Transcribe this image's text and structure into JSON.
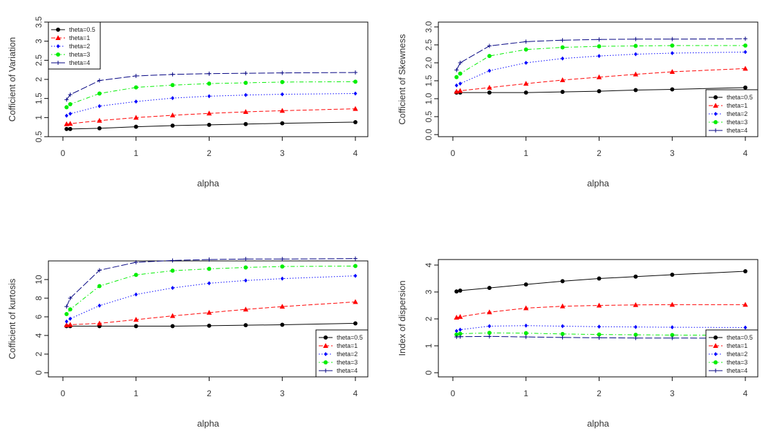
{
  "figure": {
    "x_tick_labels": [
      "0",
      "1",
      "2",
      "3",
      "4"
    ]
  },
  "chart_data": [
    {
      "type": "line",
      "xlabel": "alpha",
      "ylabel": "Cofficient of Variation",
      "xlim": [
        0,
        4
      ],
      "ylim": [
        0.5,
        3.5
      ],
      "y_ticks": [
        0.5,
        1,
        1.5,
        2,
        2.5,
        3,
        3.5
      ],
      "y_tick_labels": [
        "0.5",
        "1",
        "1.5",
        "2",
        "2.5",
        "3",
        "3.5"
      ],
      "legend_position": "top-left",
      "x": [
        0.05,
        0.1,
        0.5,
        1,
        1.5,
        2,
        2.5,
        3,
        4
      ],
      "series": [
        {
          "name": "theta=0.5",
          "color": "#000000",
          "marker": "circle",
          "dash": "solid",
          "values": [
            0.7,
            0.7,
            0.72,
            0.76,
            0.79,
            0.81,
            0.83,
            0.85,
            0.88
          ]
        },
        {
          "name": "theta=1",
          "color": "#ff0000",
          "marker": "triangle",
          "dash": "dashed",
          "values": [
            0.83,
            0.84,
            0.92,
            1.0,
            1.06,
            1.11,
            1.15,
            1.18,
            1.23
          ]
        },
        {
          "name": "theta=2",
          "color": "#0000ff",
          "marker": "diamond",
          "dash": "dotted",
          "values": [
            1.05,
            1.1,
            1.3,
            1.42,
            1.51,
            1.56,
            1.59,
            1.61,
            1.63
          ]
        },
        {
          "name": "theta=3",
          "color": "#00ee00",
          "marker": "circle",
          "dash": "dotdash",
          "values": [
            1.27,
            1.35,
            1.63,
            1.79,
            1.85,
            1.89,
            1.91,
            1.93,
            1.94
          ]
        },
        {
          "name": "theta=4",
          "color": "#000080",
          "marker": "plus",
          "dash": "longdash",
          "values": [
            1.47,
            1.6,
            1.97,
            2.09,
            2.13,
            2.15,
            2.16,
            2.17,
            2.18
          ]
        }
      ]
    },
    {
      "type": "line",
      "xlabel": "alpha",
      "ylabel": "Cofficient of Skewness",
      "xlim": [
        0,
        4
      ],
      "ylim": [
        0,
        3
      ],
      "y_ticks": [
        0,
        0.5,
        1,
        1.5,
        2,
        2.5,
        3
      ],
      "y_tick_labels": [
        "0.0",
        "0.5",
        "1.0",
        "1.5",
        "2.0",
        "2.5",
        "3.0"
      ],
      "legend_position": "bottom-right",
      "x": [
        0.05,
        0.1,
        0.5,
        1,
        1.5,
        2,
        2.5,
        3,
        4
      ],
      "series": [
        {
          "name": "theta=0.5",
          "color": "#000000",
          "marker": "circle",
          "dash": "solid",
          "values": [
            1.17,
            1.17,
            1.17,
            1.17,
            1.19,
            1.21,
            1.24,
            1.26,
            1.31
          ]
        },
        {
          "name": "theta=1",
          "color": "#ff0000",
          "marker": "triangle",
          "dash": "dashed",
          "values": [
            1.2,
            1.22,
            1.31,
            1.42,
            1.52,
            1.6,
            1.68,
            1.75,
            1.84
          ]
        },
        {
          "name": "theta=2",
          "color": "#0000ff",
          "marker": "diamond",
          "dash": "dotted",
          "values": [
            1.37,
            1.42,
            1.78,
            2.0,
            2.12,
            2.19,
            2.24,
            2.27,
            2.3
          ]
        },
        {
          "name": "theta=3",
          "color": "#00ee00",
          "marker": "circle",
          "dash": "dotdash",
          "values": [
            1.6,
            1.7,
            2.19,
            2.37,
            2.43,
            2.46,
            2.47,
            2.48,
            2.48
          ]
        },
        {
          "name": "theta=4",
          "color": "#000080",
          "marker": "plus",
          "dash": "longdash",
          "values": [
            1.8,
            2.0,
            2.47,
            2.59,
            2.63,
            2.65,
            2.66,
            2.66,
            2.67
          ]
        }
      ]
    },
    {
      "type": "line",
      "xlabel": "alpha",
      "ylabel": "Cofficient of kurtosis",
      "xlim": [
        0,
        4
      ],
      "ylim": [
        0,
        12
      ],
      "y_ticks": [
        0,
        2,
        4,
        6,
        8,
        10
      ],
      "y_tick_labels": [
        "0",
        "2",
        "4",
        "6",
        "8",
        "10"
      ],
      "legend_position": "bottom-right",
      "x": [
        0.05,
        0.1,
        0.5,
        1,
        1.5,
        2,
        2.5,
        3,
        4
      ],
      "series": [
        {
          "name": "theta=0.5",
          "color": "#000000",
          "marker": "circle",
          "dash": "solid",
          "values": [
            5.0,
            5.0,
            5.0,
            5.0,
            5.0,
            5.05,
            5.1,
            5.15,
            5.3
          ]
        },
        {
          "name": "theta=1",
          "color": "#ff0000",
          "marker": "triangle",
          "dash": "dashed",
          "values": [
            5.1,
            5.15,
            5.3,
            5.7,
            6.1,
            6.45,
            6.8,
            7.1,
            7.6
          ]
        },
        {
          "name": "theta=2",
          "color": "#0000ff",
          "marker": "diamond",
          "dash": "dotted",
          "values": [
            5.5,
            5.8,
            7.2,
            8.4,
            9.1,
            9.6,
            9.9,
            10.1,
            10.4
          ]
        },
        {
          "name": "theta=3",
          "color": "#00ee00",
          "marker": "circle",
          "dash": "dotdash",
          "values": [
            6.3,
            6.8,
            9.3,
            10.5,
            10.95,
            11.15,
            11.3,
            11.4,
            11.45
          ]
        },
        {
          "name": "theta=4",
          "color": "#000080",
          "marker": "plus",
          "dash": "longdash",
          "values": [
            7.1,
            8.0,
            11.0,
            11.85,
            12.05,
            12.15,
            12.2,
            12.2,
            12.25
          ]
        }
      ]
    },
    {
      "type": "line",
      "xlabel": "alpha",
      "ylabel": "Index of dispersion",
      "xlim": [
        0,
        4
      ],
      "ylim": [
        0,
        4
      ],
      "y_ticks": [
        0,
        1,
        2,
        3,
        4
      ],
      "y_tick_labels": [
        "0",
        "1",
        "2",
        "3",
        "4"
      ],
      "legend_position": "bottom-right",
      "x": [
        0.05,
        0.1,
        0.5,
        1,
        1.5,
        2,
        2.5,
        3,
        4
      ],
      "series": [
        {
          "name": "theta=0.5",
          "color": "#000000",
          "marker": "circle",
          "dash": "solid",
          "values": [
            3.02,
            3.05,
            3.15,
            3.28,
            3.4,
            3.5,
            3.57,
            3.64,
            3.77
          ]
        },
        {
          "name": "theta=1",
          "color": "#ff0000",
          "marker": "triangle",
          "dash": "dashed",
          "values": [
            2.05,
            2.08,
            2.25,
            2.4,
            2.47,
            2.5,
            2.52,
            2.53,
            2.53
          ]
        },
        {
          "name": "theta=2",
          "color": "#0000ff",
          "marker": "diamond",
          "dash": "dotted",
          "values": [
            1.55,
            1.6,
            1.73,
            1.75,
            1.73,
            1.71,
            1.7,
            1.69,
            1.68
          ]
        },
        {
          "name": "theta=3",
          "color": "#00ee00",
          "marker": "circle",
          "dash": "dotdash",
          "values": [
            1.42,
            1.45,
            1.48,
            1.47,
            1.44,
            1.42,
            1.41,
            1.4,
            1.39
          ]
        },
        {
          "name": "theta=4",
          "color": "#000080",
          "marker": "plus",
          "dash": "longdash",
          "values": [
            1.33,
            1.34,
            1.35,
            1.33,
            1.31,
            1.3,
            1.29,
            1.29,
            1.28
          ]
        }
      ]
    }
  ]
}
